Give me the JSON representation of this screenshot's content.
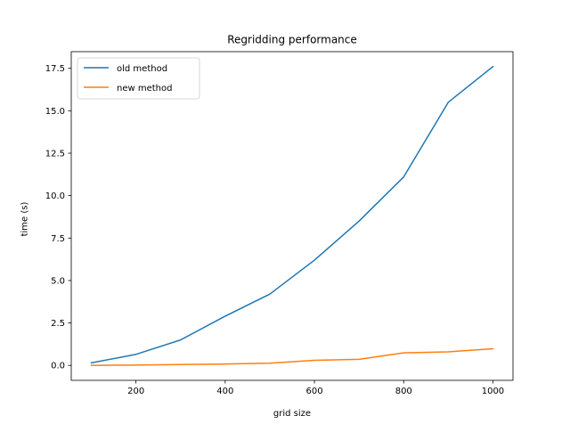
{
  "chart_data": {
    "type": "line",
    "title": "Regridding performance",
    "xlabel": "grid size",
    "ylabel": "time (s)",
    "x": [
      100,
      200,
      300,
      400,
      500,
      600,
      700,
      800,
      900,
      1000
    ],
    "series": [
      {
        "name": "old method",
        "color": "#1f77b4",
        "values": [
          0.15,
          0.65,
          1.5,
          2.9,
          4.2,
          6.2,
          8.5,
          11.1,
          15.5,
          17.6
        ]
      },
      {
        "name": "new method",
        "color": "#ff7f0e",
        "values": [
          0.0,
          0.02,
          0.05,
          0.08,
          0.13,
          0.3,
          0.36,
          0.74,
          0.8,
          0.98
        ]
      }
    ],
    "xlim": [
      55,
      1045
    ],
    "ylim": [
      -0.88,
      18.48
    ],
    "xticks": [
      200,
      400,
      600,
      800,
      1000
    ],
    "xtick_labels": [
      "200",
      "400",
      "600",
      "800",
      "1000"
    ],
    "yticks": [
      0,
      2.5,
      5,
      7.5,
      10,
      12.5,
      15,
      17.5
    ],
    "ytick_labels": [
      "0.0",
      "2.5",
      "5.0",
      "7.5",
      "10.0",
      "12.5",
      "15.0",
      "17.5"
    ],
    "grid": false,
    "legend_position": "upper left"
  }
}
